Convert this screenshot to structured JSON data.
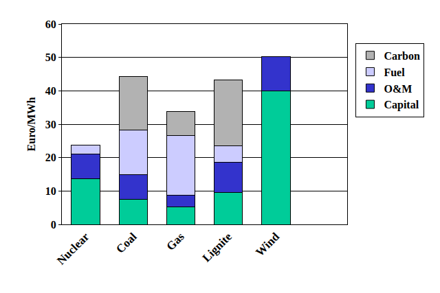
{
  "chart_data": {
    "type": "bar",
    "y_label": "Euro/MWh",
    "categories": [
      "Nuclear",
      "Coal",
      "Gas",
      "Lignite",
      "Wind",
      null
    ],
    "series": [
      {
        "name": "Capital",
        "color": "#00CC99",
        "values": [
          13.7,
          7.6,
          5.2,
          9.6,
          40,
          null
        ]
      },
      {
        "name": "O&M",
        "color": "#3333CC",
        "values": [
          7.3,
          7.4,
          3.5,
          9,
          10.2,
          null
        ]
      },
      {
        "name": "Fuel",
        "color": "#CCCCFF",
        "values": [
          2.8,
          13.2,
          18,
          5,
          0,
          null
        ]
      },
      {
        "name": "Carbon",
        "color": "#B2B2B2",
        "values": [
          0,
          16.1,
          7,
          19.6,
          0,
          null
        ]
      }
    ],
    "stacked": true,
    "ylim": [
      0,
      60
    ],
    "yticks": [
      0,
      10,
      20,
      30,
      40,
      50,
      60
    ],
    "grid": true,
    "legend": "right"
  }
}
